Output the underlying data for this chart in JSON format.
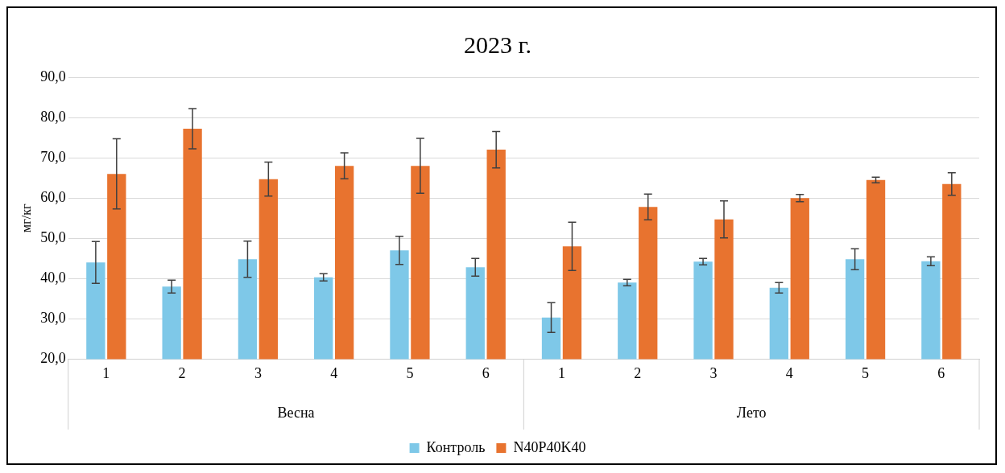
{
  "chart_data": {
    "type": "bar",
    "title": "2023 г.",
    "ylabel": "мг/кг",
    "categories": [
      "1",
      "2",
      "3",
      "4",
      "5",
      "6",
      "1",
      "2",
      "3",
      "4",
      "5",
      "6"
    ],
    "annotations": [
      "Весна",
      "Лето"
    ],
    "series": [
      {
        "name": "Контроль",
        "color": "#7ec8e8",
        "values": [
          44.0,
          38.0,
          44.8,
          40.3,
          47.0,
          42.8,
          30.3,
          39.0,
          44.2,
          37.7,
          44.8,
          44.3
        ],
        "errors": [
          5.2,
          1.6,
          4.5,
          0.9,
          3.5,
          2.2,
          3.7,
          0.8,
          0.8,
          1.3,
          2.6,
          1.1
        ]
      },
      {
        "name": "N40P40K40",
        "color": "#e8732f",
        "values": [
          66.0,
          77.2,
          64.7,
          68.0,
          68.0,
          72.0,
          48.0,
          57.8,
          54.7,
          60.0,
          64.5,
          63.5
        ],
        "errors": [
          8.7,
          5.0,
          4.2,
          3.2,
          6.8,
          4.5,
          6.0,
          3.2,
          4.6,
          0.9,
          0.7,
          2.8
        ]
      }
    ],
    "ylim": [
      20,
      90
    ],
    "yticks": [
      {
        "value": 20,
        "label": "20,0"
      },
      {
        "value": 30,
        "label": "30,0"
      },
      {
        "value": 40,
        "label": "40,0"
      },
      {
        "value": 50,
        "label": "50,0"
      },
      {
        "value": 60,
        "label": "60,0"
      },
      {
        "value": 70,
        "label": "70,0"
      },
      {
        "value": 80,
        "label": "80,0"
      },
      {
        "value": 90,
        "label": "90,0"
      }
    ],
    "grid": "y",
    "legend": "bottom"
  }
}
